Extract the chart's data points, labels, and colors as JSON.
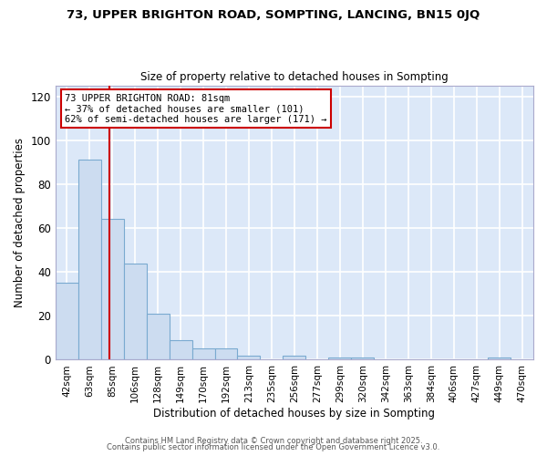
{
  "title1": "73, UPPER BRIGHTON ROAD, SOMPTING, LANCING, BN15 0JQ",
  "title2": "Size of property relative to detached houses in Sompting",
  "xlabel": "Distribution of detached houses by size in Sompting",
  "ylabel": "Number of detached properties",
  "bin_labels": [
    "42sqm",
    "63sqm",
    "85sqm",
    "106sqm",
    "128sqm",
    "149sqm",
    "170sqm",
    "192sqm",
    "213sqm",
    "235sqm",
    "256sqm",
    "277sqm",
    "299sqm",
    "320sqm",
    "342sqm",
    "363sqm",
    "384sqm",
    "406sqm",
    "427sqm",
    "449sqm",
    "470sqm"
  ],
  "bar_heights": [
    35,
    91,
    64,
    44,
    21,
    9,
    5,
    5,
    2,
    0,
    2,
    0,
    1,
    1,
    0,
    0,
    0,
    0,
    0,
    1,
    0
  ],
  "bar_color": "#ccdcf0",
  "bar_edge_color": "#7aaad0",
  "plot_bg_color": "#dce8f8",
  "fig_bg_color": "#ffffff",
  "grid_color": "#ffffff",
  "vline_color": "#cc0000",
  "annotation_text": "73 UPPER BRIGHTON ROAD: 81sqm\n← 37% of detached houses are smaller (101)\n62% of semi-detached houses are larger (171) →",
  "annotation_box_facecolor": "#ffffff",
  "annotation_border_color": "#cc0000",
  "ylim": [
    0,
    125
  ],
  "yticks": [
    0,
    20,
    40,
    60,
    80,
    100,
    120
  ],
  "vline_pos": 1.857,
  "footer1": "Contains HM Land Registry data © Crown copyright and database right 2025.",
  "footer2": "Contains public sector information licensed under the Open Government Licence v3.0."
}
